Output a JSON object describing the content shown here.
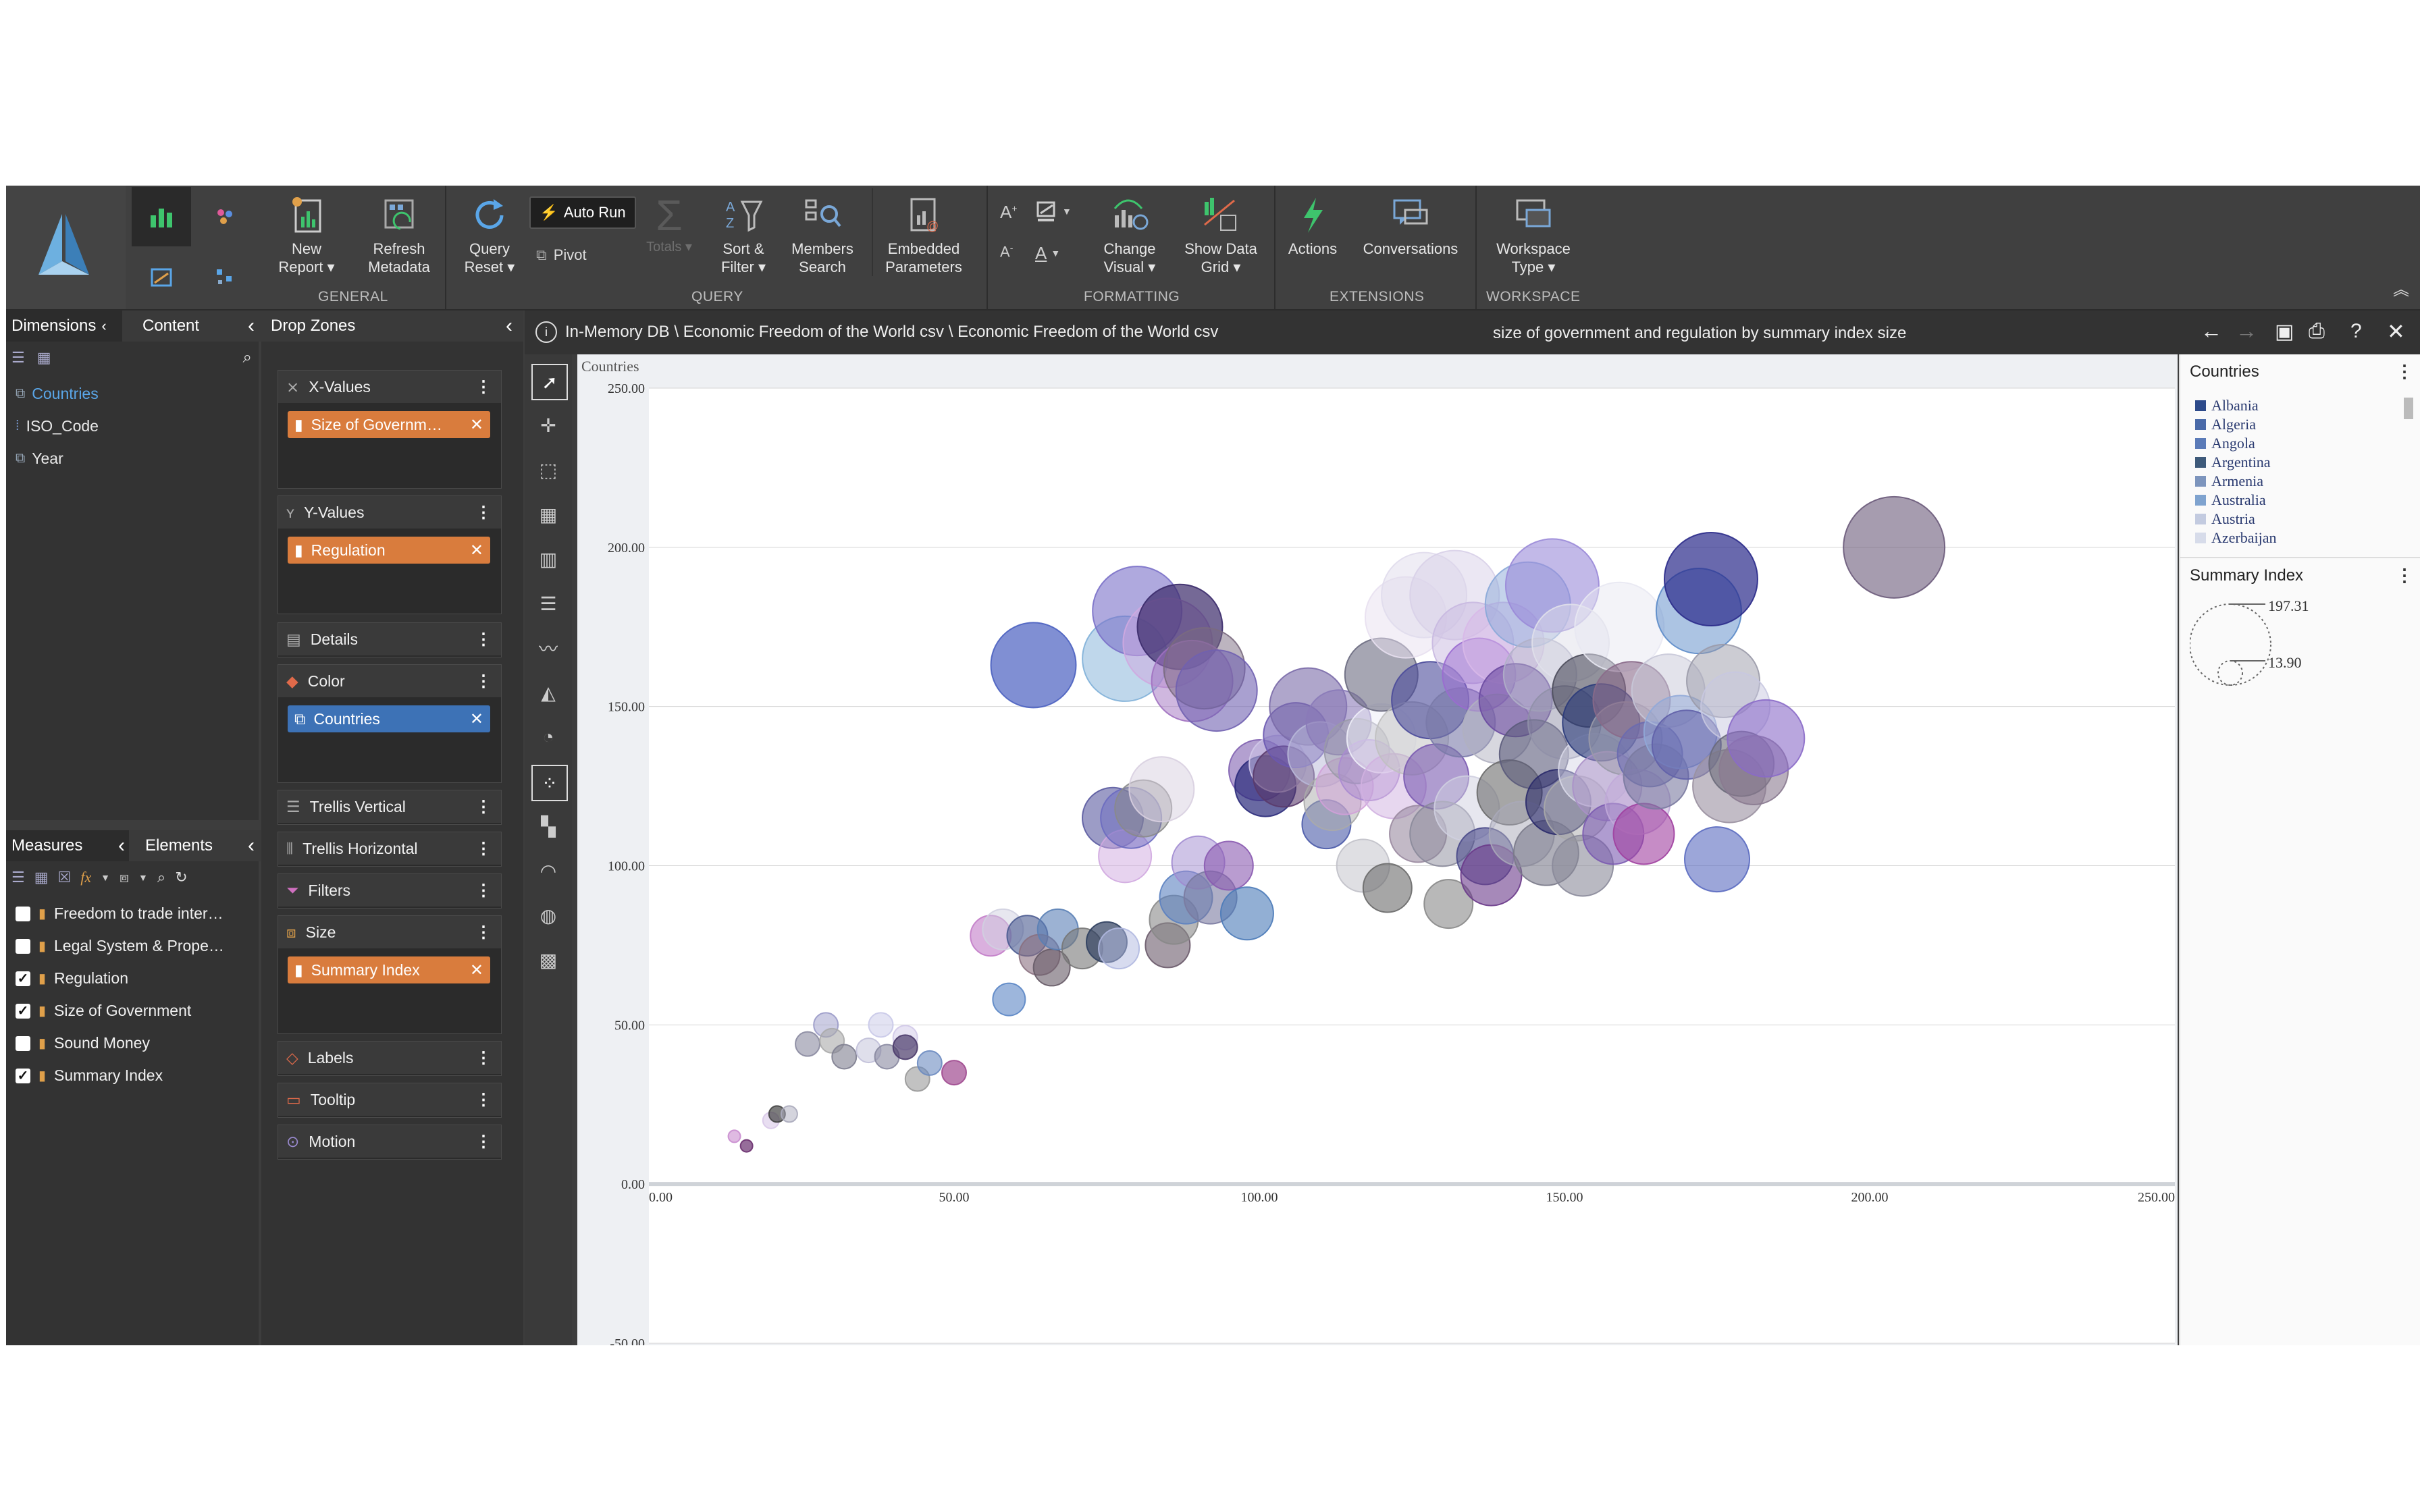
{
  "ribbon": {
    "groups": [
      {
        "label": "GENERAL"
      },
      {
        "label": "QUERY"
      },
      {
        "label": "FORMATTING"
      },
      {
        "label": "EXTENSIONS"
      },
      {
        "label": "WORKSPACE"
      }
    ],
    "buttons": {
      "new_report": "New\nReport ▾",
      "refresh_metadata": "Refresh\nMetadata",
      "query_reset": "Query\nReset ▾",
      "auto_run": "Auto Run",
      "pivot": "Pivot",
      "totals": "Totals ▾",
      "sort_filter": "Sort &\nFilter ▾",
      "members_search": "Members\nSearch",
      "embedded_parameters": "Embedded\nParameters",
      "change_visual": "Change\nVisual ▾",
      "show_data_grid": "Show Data\nGrid ▾",
      "actions": "Actions",
      "conversations": "Conversations",
      "workspace_type": "Workspace\nType ▾"
    }
  },
  "dimensions_panel": {
    "tabs": [
      "Dimensions",
      "Content"
    ],
    "items": [
      "Countries",
      "ISO_Code",
      "Year"
    ]
  },
  "measures_panel": {
    "tabs": [
      "Measures",
      "Elements"
    ],
    "items": [
      {
        "label": "Freedom to trade inter…",
        "checked": false
      },
      {
        "label": "Legal System & Prope…",
        "checked": false
      },
      {
        "label": "Regulation",
        "checked": true
      },
      {
        "label": "Size of Government",
        "checked": true
      },
      {
        "label": "Sound Money",
        "checked": false
      },
      {
        "label": "Summary Index",
        "checked": true
      }
    ]
  },
  "drop_zones": {
    "title": "Drop Zones",
    "zones": {
      "x_values": {
        "label": "X-Values",
        "pill": "Size of Governm…"
      },
      "y_values": {
        "label": "Y-Values",
        "pill": "Regulation"
      },
      "details": {
        "label": "Details"
      },
      "color": {
        "label": "Color",
        "pill": "Countries"
      },
      "trellis_vertical": {
        "label": "Trellis Vertical"
      },
      "trellis_horizontal": {
        "label": "Trellis Horizontal"
      },
      "filters": {
        "label": "Filters"
      },
      "size": {
        "label": "Size",
        "pill": "Summary Index"
      },
      "labels": {
        "label": "Labels"
      },
      "tooltip": {
        "label": "Tooltip"
      },
      "motion": {
        "label": "Motion"
      }
    }
  },
  "infobar": {
    "path": "In-Memory DB \\ Economic Freedom of the World csv \\ Economic Freedom of the World csv",
    "title": "size of government and regulation by summary index size"
  },
  "legend": {
    "countries_title": "Countries",
    "countries": [
      "Albania",
      "Algeria",
      "Angola",
      "Argentina",
      "Armenia",
      "Australia",
      "Austria",
      "Azerbaijan"
    ],
    "country_colors": [
      "#2d4a8a",
      "#4a6aa8",
      "#5b7bb8",
      "#3e5a7a",
      "#7d95bd",
      "#7fa3cf",
      "#c3cbe0",
      "#d7dcea"
    ],
    "size_title": "Summary Index",
    "size_max": "197.31",
    "size_min": "13.90"
  },
  "chart_data": {
    "type": "scatter",
    "title": "Countries",
    "xlim": [
      0,
      250
    ],
    "ylim": [
      -50,
      250
    ],
    "xticks": [
      "0.00",
      "50.00",
      "100.00",
      "150.00",
      "200.00",
      "250.00"
    ],
    "yticks": [
      "250.00",
      "200.00",
      "150.00",
      "100.00",
      "50.00",
      "0.00",
      "-50.00"
    ],
    "points": [
      [
        14,
        15,
        3,
        "#c98ccf",
        0.6
      ],
      [
        16,
        12,
        3,
        "#6a2f6f",
        0.7
      ],
      [
        20,
        20,
        4,
        "#d8c8e8",
        0.6
      ],
      [
        21,
        22,
        4,
        "#444",
        0.7
      ],
      [
        23,
        22,
        4,
        "#aab",
        0.5
      ],
      [
        26,
        44,
        6,
        "#8a8aa0",
        0.6
      ],
      [
        29,
        50,
        6,
        "#9a9ac8",
        0.5
      ],
      [
        30,
        45,
        6,
        "#aaa",
        0.6
      ],
      [
        32,
        40,
        6,
        "#7e7e90",
        0.6
      ],
      [
        36,
        42,
        6,
        "#c0bfd8",
        0.5
      ],
      [
        38,
        50,
        6,
        "#c8c8e8",
        0.5
      ],
      [
        39,
        40,
        6,
        "#8888a0",
        0.6
      ],
      [
        42,
        46,
        6,
        "#d0c8e8",
        0.5
      ],
      [
        42,
        43,
        6,
        "#4a3a6a",
        0.7
      ],
      [
        44,
        33,
        6,
        "#999",
        0.6
      ],
      [
        46,
        38,
        6,
        "#6a8ac0",
        0.6
      ],
      [
        50,
        35,
        6,
        "#a04a90",
        0.7
      ],
      [
        56,
        78,
        10,
        "#c27cc8",
        0.6
      ],
      [
        58,
        80,
        10,
        "#d0d0e0",
        0.5
      ],
      [
        59,
        58,
        8,
        "#5b86c5",
        0.6
      ],
      [
        62,
        78,
        10,
        "#4a5a90",
        0.6
      ],
      [
        64,
        72,
        10,
        "#8a7080",
        0.6
      ],
      [
        66,
        68,
        9,
        "#665a66",
        0.6
      ],
      [
        67,
        80,
        10,
        "#5a7fb5",
        0.6
      ],
      [
        71,
        74,
        10,
        "#777",
        0.6
      ],
      [
        75,
        76,
        10,
        "#2f3f5f",
        0.7
      ],
      [
        77,
        74,
        10,
        "#b0b8e0",
        0.5
      ],
      [
        76,
        115,
        15,
        "#5a5aa0",
        0.6
      ],
      [
        78,
        103,
        13,
        "#d0a8e0",
        0.5
      ],
      [
        79,
        115,
        15,
        "#6a6ac0",
        0.5
      ],
      [
        81,
        118,
        14,
        "#8a8a8a",
        0.5
      ],
      [
        84,
        124,
        16,
        "#d8cfe0",
        0.5
      ],
      [
        85,
        75,
        11,
        "#6a5a6a",
        0.6
      ],
      [
        86,
        83,
        12,
        "#888",
        0.6
      ],
      [
        88,
        90,
        13,
        "#5a80c0",
        0.6
      ],
      [
        90,
        101,
        13,
        "#a08ad0",
        0.5
      ],
      [
        92,
        90,
        13,
        "#7a7aa0",
        0.6
      ],
      [
        95,
        100,
        12,
        "#8a5ab0",
        0.6
      ],
      [
        98,
        85,
        13,
        "#4a7ab8",
        0.6
      ],
      [
        63,
        163,
        21,
        "#4a60c0",
        0.7
      ],
      [
        78,
        165,
        21,
        "#80b0d8",
        0.5
      ],
      [
        80,
        180,
        22,
        "#7a70c8",
        0.6
      ],
      [
        85,
        170,
        22,
        "#cfa8e0",
        0.5
      ],
      [
        87,
        175,
        21,
        "#3a2a6a",
        0.7
      ],
      [
        89,
        158,
        20,
        "#a070c0",
        0.5
      ],
      [
        91,
        162,
        20,
        "#7a6a80",
        0.5
      ],
      [
        93,
        155,
        20,
        "#7060b0",
        0.6
      ],
      [
        100,
        130,
        15,
        "#8060b0",
        0.6
      ],
      [
        101,
        125,
        15,
        "#2a2a7a",
        0.7
      ],
      [
        103,
        132,
        14,
        "#d0c8e8",
        0.5
      ],
      [
        104,
        128,
        15,
        "#5a3a6a",
        0.6
      ],
      [
        106,
        141,
        16,
        "#6a58b0",
        0.6
      ],
      [
        108,
        150,
        19,
        "#7a6aa8",
        0.6
      ],
      [
        110,
        135,
        16,
        "#b8b8d8",
        0.5
      ],
      [
        111,
        113,
        12,
        "#4a5aa8",
        0.6
      ],
      [
        112,
        120,
        14,
        "#aaa",
        0.5
      ],
      [
        113,
        145,
        16,
        "#8a7ab8",
        0.6
      ],
      [
        114,
        125,
        14,
        "#d0a0d8",
        0.5
      ],
      [
        116,
        136,
        16,
        "#9a9aa8",
        0.5
      ],
      [
        117,
        100,
        13,
        "#c0c0c8",
        0.5
      ],
      [
        118,
        130,
        15,
        "#aa8ad0",
        0.5
      ],
      [
        120,
        140,
        17,
        "#eeeef8",
        0.5
      ],
      [
        120,
        160,
        18,
        "#6a6a80",
        0.6
      ],
      [
        121,
        93,
        12,
        "#6a6a6a",
        0.6
      ],
      [
        122,
        125,
        16,
        "#d0b0e0",
        0.5
      ],
      [
        124,
        178,
        20,
        "#e8e0f0",
        0.5
      ],
      [
        125,
        140,
        18,
        "#c0c0c0",
        0.5
      ],
      [
        126,
        110,
        14,
        "#9a8aa0",
        0.6
      ],
      [
        127,
        185,
        21,
        "#e0dcec",
        0.5
      ],
      [
        128,
        152,
        19,
        "#4a4a9a",
        0.6
      ],
      [
        129,
        128,
        16,
        "#7a5ab0",
        0.6
      ],
      [
        130,
        110,
        16,
        "#8a8a9a",
        0.5
      ],
      [
        131,
        88,
        12,
        "#888",
        0.6
      ],
      [
        132,
        185,
        22,
        "#d8d0e8",
        0.5
      ],
      [
        133,
        145,
        17,
        "#7a7aa8",
        0.6
      ],
      [
        134,
        118,
        16,
        "#cfcfe0",
        0.5
      ],
      [
        135,
        170,
        20,
        "#c8b8e0",
        0.5
      ],
      [
        136,
        160,
        18,
        "#9a6ad0",
        0.5
      ],
      [
        137,
        103,
        14,
        "#4a4a8a",
        0.6
      ],
      [
        138,
        97,
        15,
        "#6a3a8a",
        0.6
      ],
      [
        139,
        143,
        17,
        "#b0b0c0",
        0.5
      ],
      [
        140,
        170,
        20,
        "#d8b8e8",
        0.5
      ],
      [
        141,
        123,
        16,
        "#6a6a6a",
        0.6
      ],
      [
        142,
        152,
        18,
        "#6a4aa0",
        0.6
      ],
      [
        143,
        110,
        16,
        "#a8a8b8",
        0.5
      ],
      [
        144,
        182,
        21,
        "#8aa8d8",
        0.5
      ],
      [
        145,
        135,
        17,
        "#5a5a7a",
        0.6
      ],
      [
        146,
        160,
        18,
        "#b0b0c8",
        0.5
      ],
      [
        147,
        104,
        16,
        "#7a7a8a",
        0.6
      ],
      [
        148,
        188,
        23,
        "#9a8ad8",
        0.6
      ],
      [
        149,
        120,
        16,
        "#2a2a6a",
        0.6
      ],
      [
        150,
        145,
        18,
        "#9090a8",
        0.5
      ],
      [
        151,
        170,
        19,
        "#e0e0ea",
        0.5
      ],
      [
        152,
        118,
        16,
        "#aaa",
        0.5
      ],
      [
        153,
        100,
        15,
        "#8a8a9a",
        0.6
      ],
      [
        154,
        155,
        18,
        "#4a4a5a",
        0.6
      ],
      [
        155,
        130,
        18,
        "#d8d8e8",
        0.5
      ],
      [
        156,
        145,
        19,
        "#2a3a7a",
        0.6
      ],
      [
        157,
        125,
        17,
        "#aa90c8",
        0.5
      ],
      [
        158,
        110,
        15,
        "#7a5ab0",
        0.6
      ],
      [
        159,
        175,
        22,
        "#e8e8f2",
        0.5
      ],
      [
        160,
        140,
        18,
        "#9a9aa8",
        0.5
      ],
      [
        161,
        152,
        19,
        "#8a6a8a",
        0.6
      ],
      [
        162,
        120,
        16,
        "#c0a8d8",
        0.5
      ],
      [
        163,
        110,
        15,
        "#a040a0",
        0.6
      ],
      [
        164,
        135,
        16,
        "#6a6ab0",
        0.6
      ],
      [
        165,
        128,
        16,
        "#7a7aa0",
        0.6
      ],
      [
        167,
        155,
        18,
        "#c8c8d8",
        0.5
      ],
      [
        169,
        142,
        18,
        "#90a8d8",
        0.5
      ],
      [
        170,
        138,
        17,
        "#6060a8",
        0.6
      ],
      [
        172,
        180,
        21,
        "#5a8ac8",
        0.5
      ],
      [
        174,
        190,
        23,
        "#2a2a8a",
        0.7
      ],
      [
        175,
        102,
        16,
        "#5a6ac0",
        0.6
      ],
      [
        176,
        158,
        18,
        "#9a9aa8",
        0.5
      ],
      [
        177,
        125,
        18,
        "#9a90a0",
        0.6
      ],
      [
        178,
        150,
        17,
        "#c8c8e0",
        0.5
      ],
      [
        179,
        132,
        16,
        "#6a6a7a",
        0.6
      ],
      [
        181,
        130,
        17,
        "#8a7a90",
        0.6
      ],
      [
        183,
        140,
        19,
        "#8a6ac8",
        0.6
      ],
      [
        204,
        200,
        25,
        "#6a5a7a",
        0.6
      ]
    ]
  }
}
